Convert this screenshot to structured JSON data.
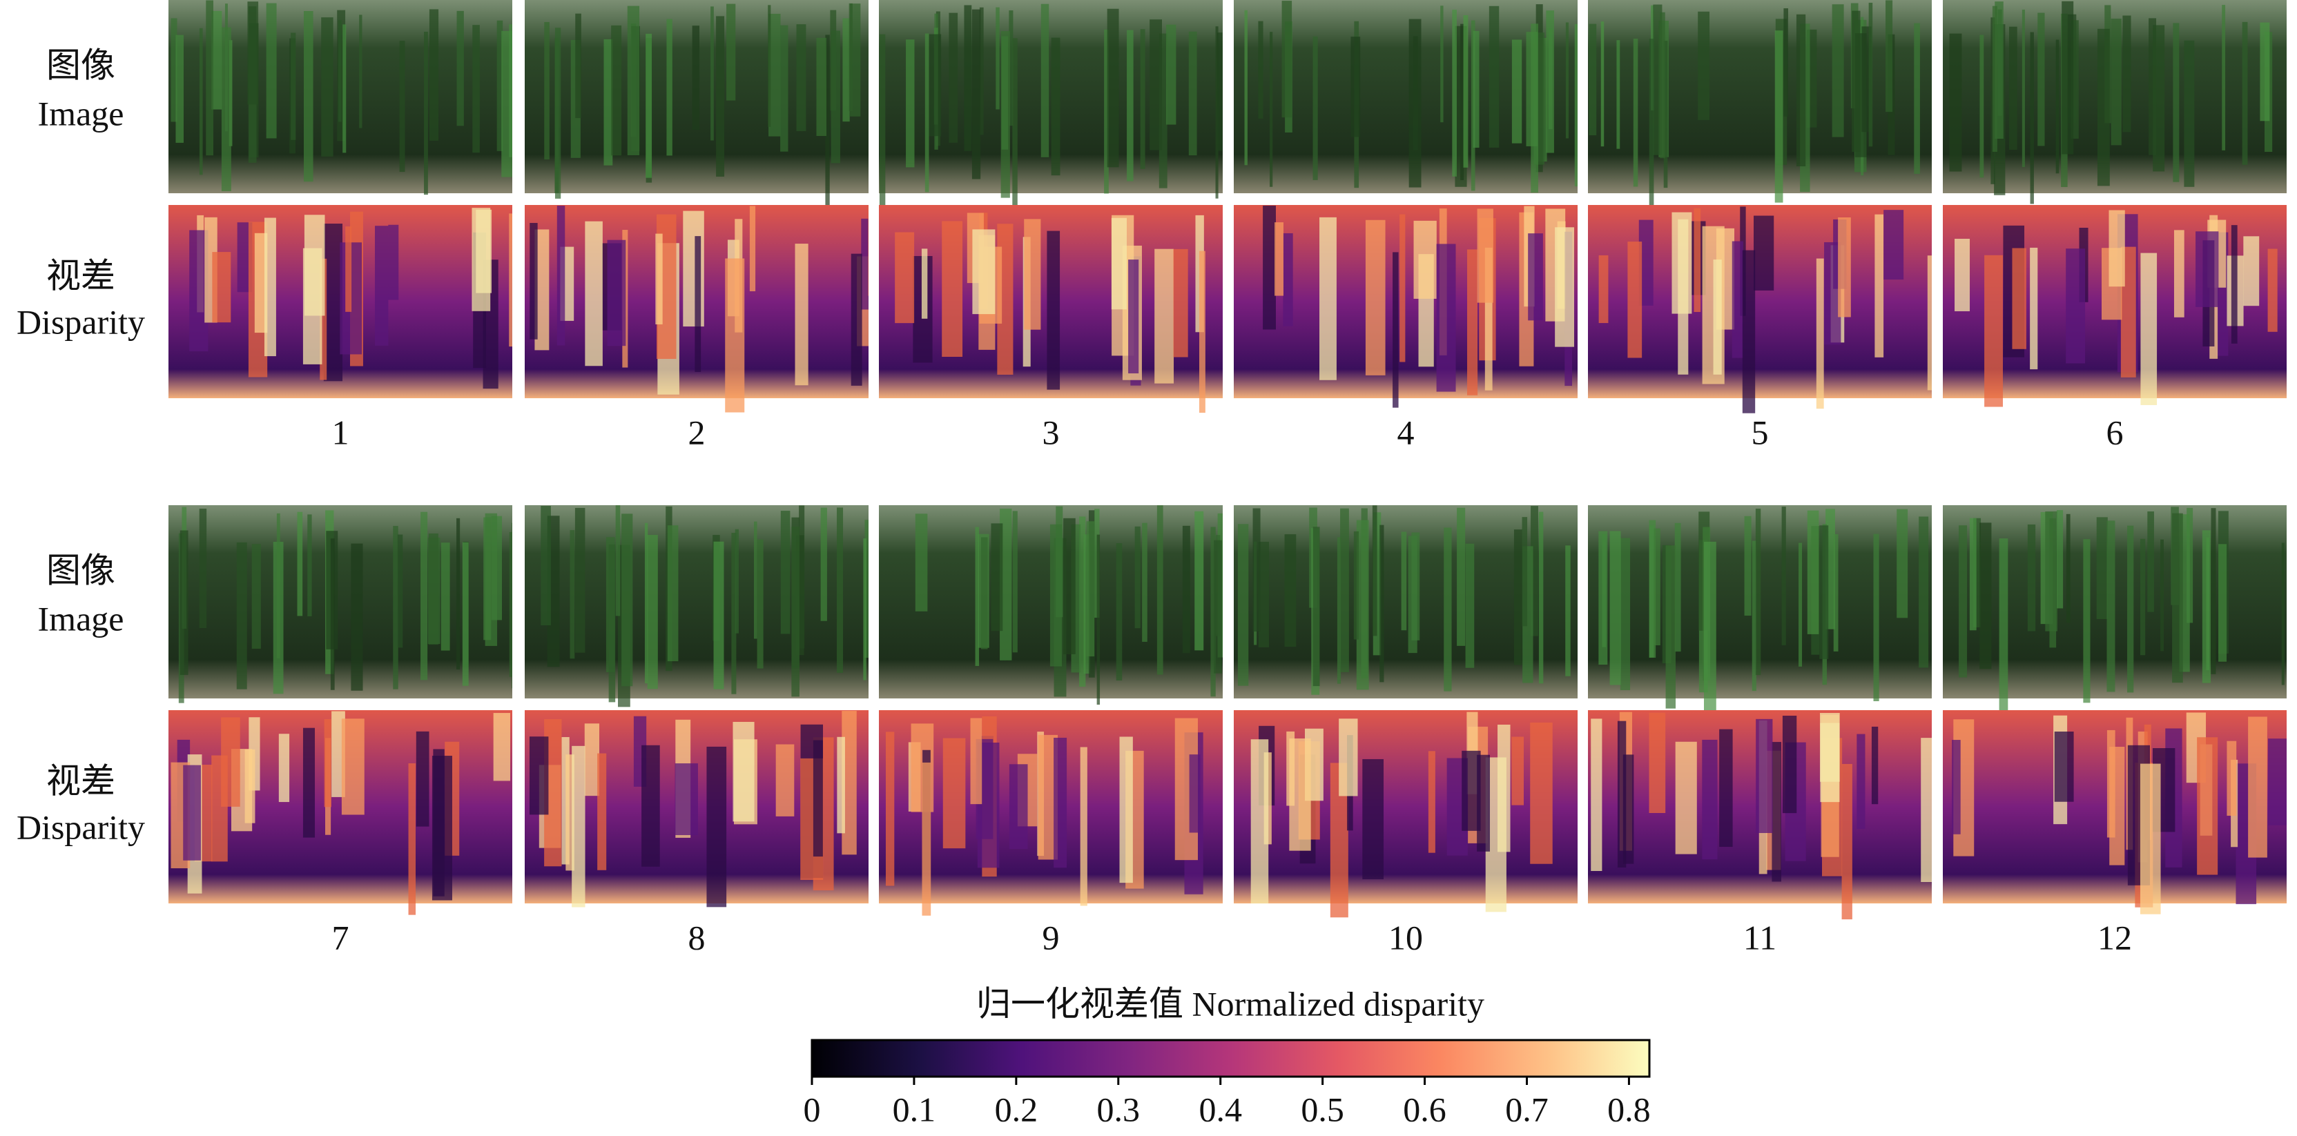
{
  "groups": [
    {
      "image_label": {
        "zh": "图像",
        "en": "Image"
      },
      "disparity_label": {
        "zh": "视差",
        "en": "Disparity"
      },
      "panels": [
        "1",
        "2",
        "3",
        "4",
        "5",
        "6"
      ]
    },
    {
      "image_label": {
        "zh": "图像",
        "en": "Image"
      },
      "disparity_label": {
        "zh": "视差",
        "en": "Disparity"
      },
      "panels": [
        "7",
        "8",
        "9",
        "10",
        "11",
        "12"
      ]
    }
  ],
  "colorbar": {
    "title": "归一化视差值 Normalized disparity",
    "lim": [
      0,
      0.82
    ],
    "ticks": [
      0,
      0.1,
      0.2,
      0.3,
      0.4,
      0.5,
      0.6,
      0.7,
      0.8
    ]
  }
}
